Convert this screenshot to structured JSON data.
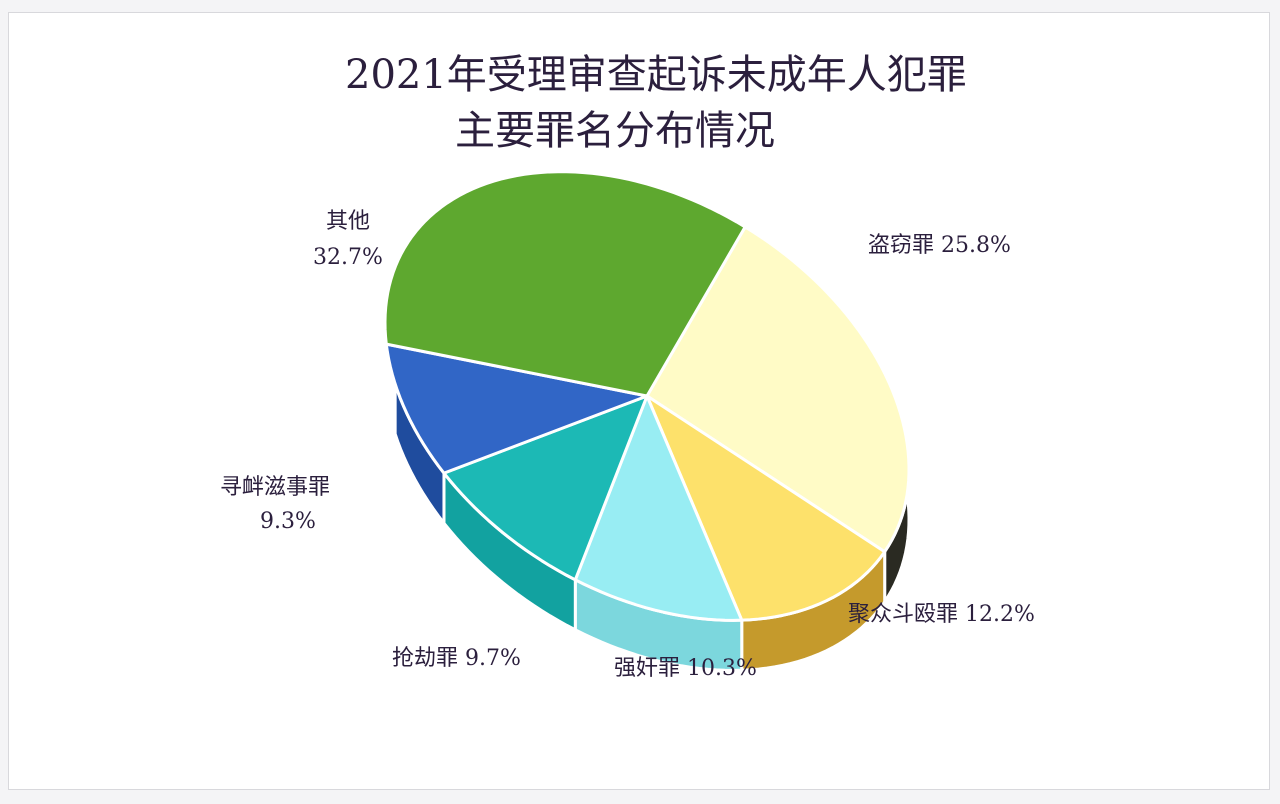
{
  "chart_data": {
    "type": "pie",
    "style": "3d",
    "title_lines": [
      "2021年受理审查起诉未成年人犯罪",
      "主要罪名分布情况"
    ],
    "slices": [
      {
        "name": "盗窃罪",
        "value": 25.8,
        "label": "盗窃罪 25.8%",
        "color": "#FFFBC6",
        "side_color": "#2A2A22"
      },
      {
        "name": "聚众斗殴罪",
        "value": 12.2,
        "label": "聚众斗殴罪 12.2%",
        "color": "#FDE16B",
        "side_color": "#C59A2C"
      },
      {
        "name": "强奸罪",
        "value": 10.3,
        "label": "强奸罪 10.3%",
        "color": "#98EDF3",
        "side_color": "#7CD7DD"
      },
      {
        "name": "抢劫罪",
        "value": 9.7,
        "label": "抢劫罪 9.7%",
        "color": "#1CB9B5",
        "side_color": "#12A2A0"
      },
      {
        "name": "寻衅滋事罪",
        "value": 9.3,
        "label_lines": [
          "寻衅滋事罪",
          "9.3%"
        ],
        "color": "#3166C6",
        "side_color": "#1F4C9E"
      },
      {
        "name": "其他",
        "value": 32.7,
        "label_lines": [
          "其他",
          "32.7%"
        ],
        "color": "#5EA82F",
        "side_color": "#3E7A1E"
      }
    ]
  }
}
